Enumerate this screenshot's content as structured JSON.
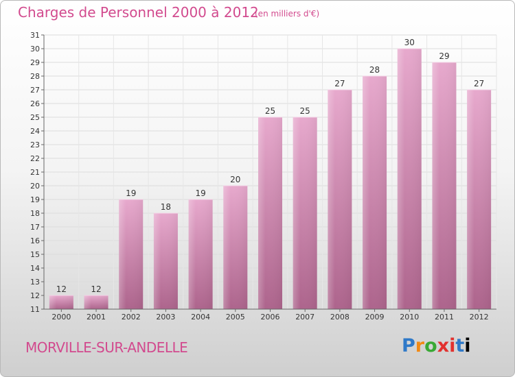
{
  "header": {
    "title": "Charges de Personnel 2000 à 2012",
    "subtitle": "(en milliers d'€)"
  },
  "footer": {
    "place": "MORVILLE-SUR-ANDELLE",
    "logo": "Proxiti"
  },
  "colors": {
    "accent": "#d24a8e",
    "bar_top": "#e6a6cb",
    "bar_bottom": "#b0678f"
  },
  "chart_data": {
    "type": "bar",
    "title": "Charges de Personnel 2000 à 2012",
    "subtitle": "(en milliers d'€)",
    "categories": [
      "2000",
      "2001",
      "2002",
      "2003",
      "2004",
      "2005",
      "2006",
      "2007",
      "2008",
      "2009",
      "2010",
      "2011",
      "2012"
    ],
    "values": [
      12,
      12,
      19,
      18,
      19,
      20,
      25,
      25,
      27,
      28,
      30,
      29,
      27
    ],
    "ylim": [
      11,
      31
    ],
    "yticks": [
      11,
      12,
      13,
      14,
      15,
      16,
      17,
      18,
      19,
      20,
      21,
      22,
      23,
      24,
      25,
      26,
      27,
      28,
      29,
      30,
      31
    ],
    "grid": true
  }
}
